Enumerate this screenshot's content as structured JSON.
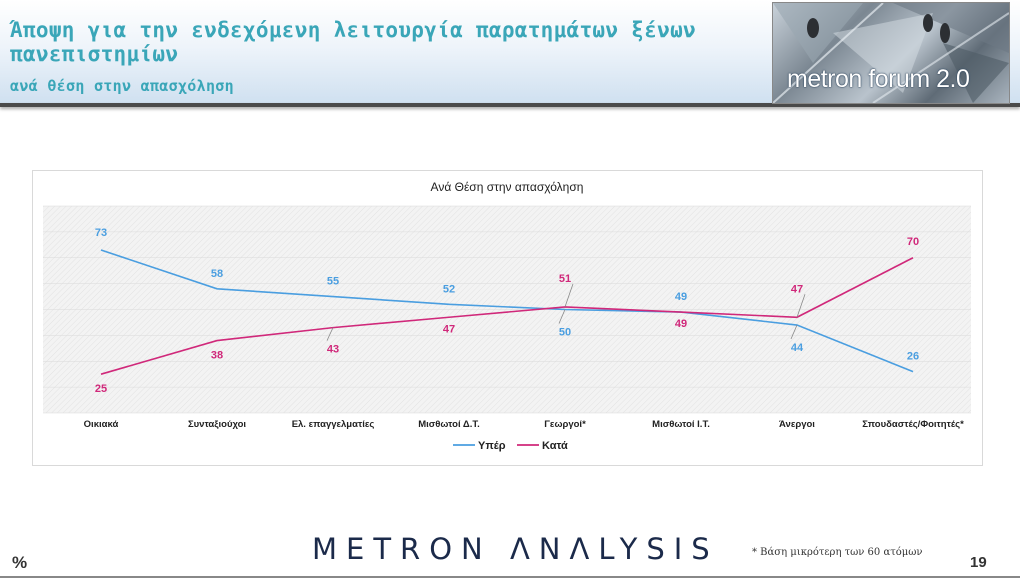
{
  "header": {
    "title": "Άποψη για την ενδεχόμενη λειτουργία παρατημάτων ξένων πανεπιστημίων",
    "subtitle": "ανά θέση στην απασχόληση",
    "logo_text": "metron forum 2.0"
  },
  "chart_data": {
    "type": "line",
    "title": "Ανά Θέση στην απασχόληση",
    "xlabel": "",
    "ylabel": "",
    "categories": [
      "Οικιακά",
      "Συνταξιούχοι",
      "Ελ. επαγγελματίες",
      "Μισθωτοί Δ.Τ.",
      "Γεωργοί*",
      "Μισθωτοί Ι.Τ.",
      "Άνεργοι",
      "Σπουδαστές/Φοιτητές*"
    ],
    "series": [
      {
        "name": "Υπέρ",
        "color": "#4a9ee0",
        "values": [
          73,
          58,
          55,
          52,
          50,
          49,
          44,
          26
        ]
      },
      {
        "name": "Κατά",
        "color": "#d0287a",
        "values": [
          25,
          38,
          43,
          47,
          51,
          49,
          47,
          70
        ]
      }
    ],
    "ylim": [
      10,
      90
    ],
    "grid": true,
    "legend_position": "bottom"
  },
  "footer": {
    "brand": "METRON ΛNΛLYSIS",
    "footnote": "* Βάση μικρότερη των 60 ατόμων",
    "unit": "%",
    "page_number": "19"
  }
}
